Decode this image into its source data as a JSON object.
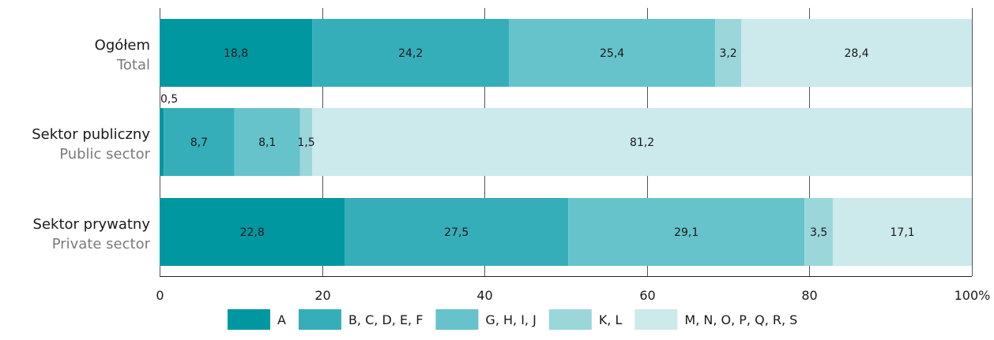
{
  "chart_data": {
    "type": "bar",
    "orientation": "horizontal",
    "stacked": true,
    "categories": [
      {
        "label_pl": "Ogółem",
        "label_en": "Total"
      },
      {
        "label_pl": "Sektor publiczny",
        "label_en": "Public sector"
      },
      {
        "label_pl": "Sektor prywatny",
        "label_en": "Private sector"
      }
    ],
    "series": [
      {
        "name": "A",
        "color": "#0097a1",
        "values": [
          18.8,
          0.5,
          22.8
        ],
        "labels": [
          "18,8",
          "0,5",
          "22,8"
        ]
      },
      {
        "name": "B, C, D, E, F",
        "color": "#36aeb9",
        "values": [
          24.2,
          8.7,
          27.5
        ],
        "labels": [
          "24,2",
          "8,7",
          "27,5"
        ]
      },
      {
        "name": "G, H, I, J",
        "color": "#67c3cb",
        "values": [
          25.4,
          8.1,
          29.1
        ],
        "labels": [
          "25,4",
          "8,1",
          "29,1"
        ]
      },
      {
        "name": "K, L",
        "color": "#9bd6db",
        "values": [
          3.2,
          1.5,
          3.5
        ],
        "labels": [
          "3,2",
          "1,5",
          "3,5"
        ]
      },
      {
        "name": "M, N, O, P, Q, R, S",
        "color": "#cce9eb",
        "values": [
          28.4,
          81.2,
          17.1
        ],
        "labels": [
          "28,4",
          "81,2",
          "17,1"
        ]
      }
    ],
    "xlim": [
      0,
      100
    ],
    "x_ticks": [
      "0",
      "20",
      "40",
      "60",
      "80",
      "100%"
    ],
    "grid": true,
    "legend_position": "bottom"
  }
}
